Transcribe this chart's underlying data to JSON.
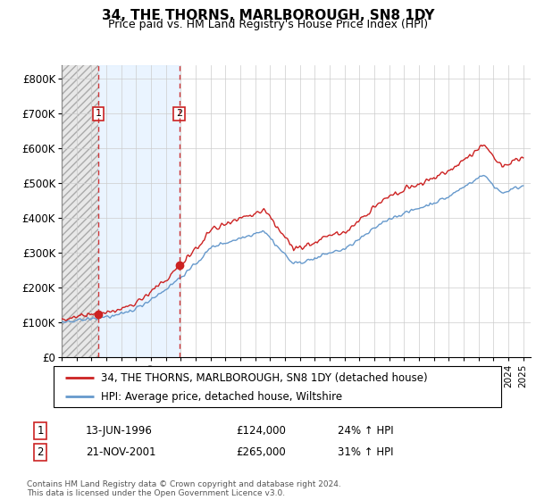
{
  "title": "34, THE THORNS, MARLBOROUGH, SN8 1DY",
  "subtitle": "Price paid vs. HM Land Registry's House Price Index (HPI)",
  "ylabel_ticks": [
    "£0",
    "£100K",
    "£200K",
    "£300K",
    "£400K",
    "£500K",
    "£600K",
    "£700K",
    "£800K"
  ],
  "ytick_values": [
    0,
    100000,
    200000,
    300000,
    400000,
    500000,
    600000,
    700000,
    800000
  ],
  "ylim": [
    0,
    840000
  ],
  "xlim_start": 1994.0,
  "xlim_end": 2025.5,
  "sale1_x": 1996.45,
  "sale1_y": 124000,
  "sale1_label": "1",
  "sale2_x": 2001.9,
  "sale2_y": 265000,
  "sale2_label": "2",
  "price_paid_color": "#cc2222",
  "hpi_color": "#6699cc",
  "grid_color": "#cccccc",
  "legend_label1": "34, THE THORNS, MARLBOROUGH, SN8 1DY (detached house)",
  "legend_label2": "HPI: Average price, detached house, Wiltshire",
  "table_row1": [
    "1",
    "13-JUN-1996",
    "£124,000",
    "24% ↑ HPI"
  ],
  "table_row2": [
    "2",
    "21-NOV-2001",
    "£265,000",
    "31% ↑ HPI"
  ],
  "footnote": "Contains HM Land Registry data © Crown copyright and database right 2024.\nThis data is licensed under the Open Government Licence v3.0."
}
